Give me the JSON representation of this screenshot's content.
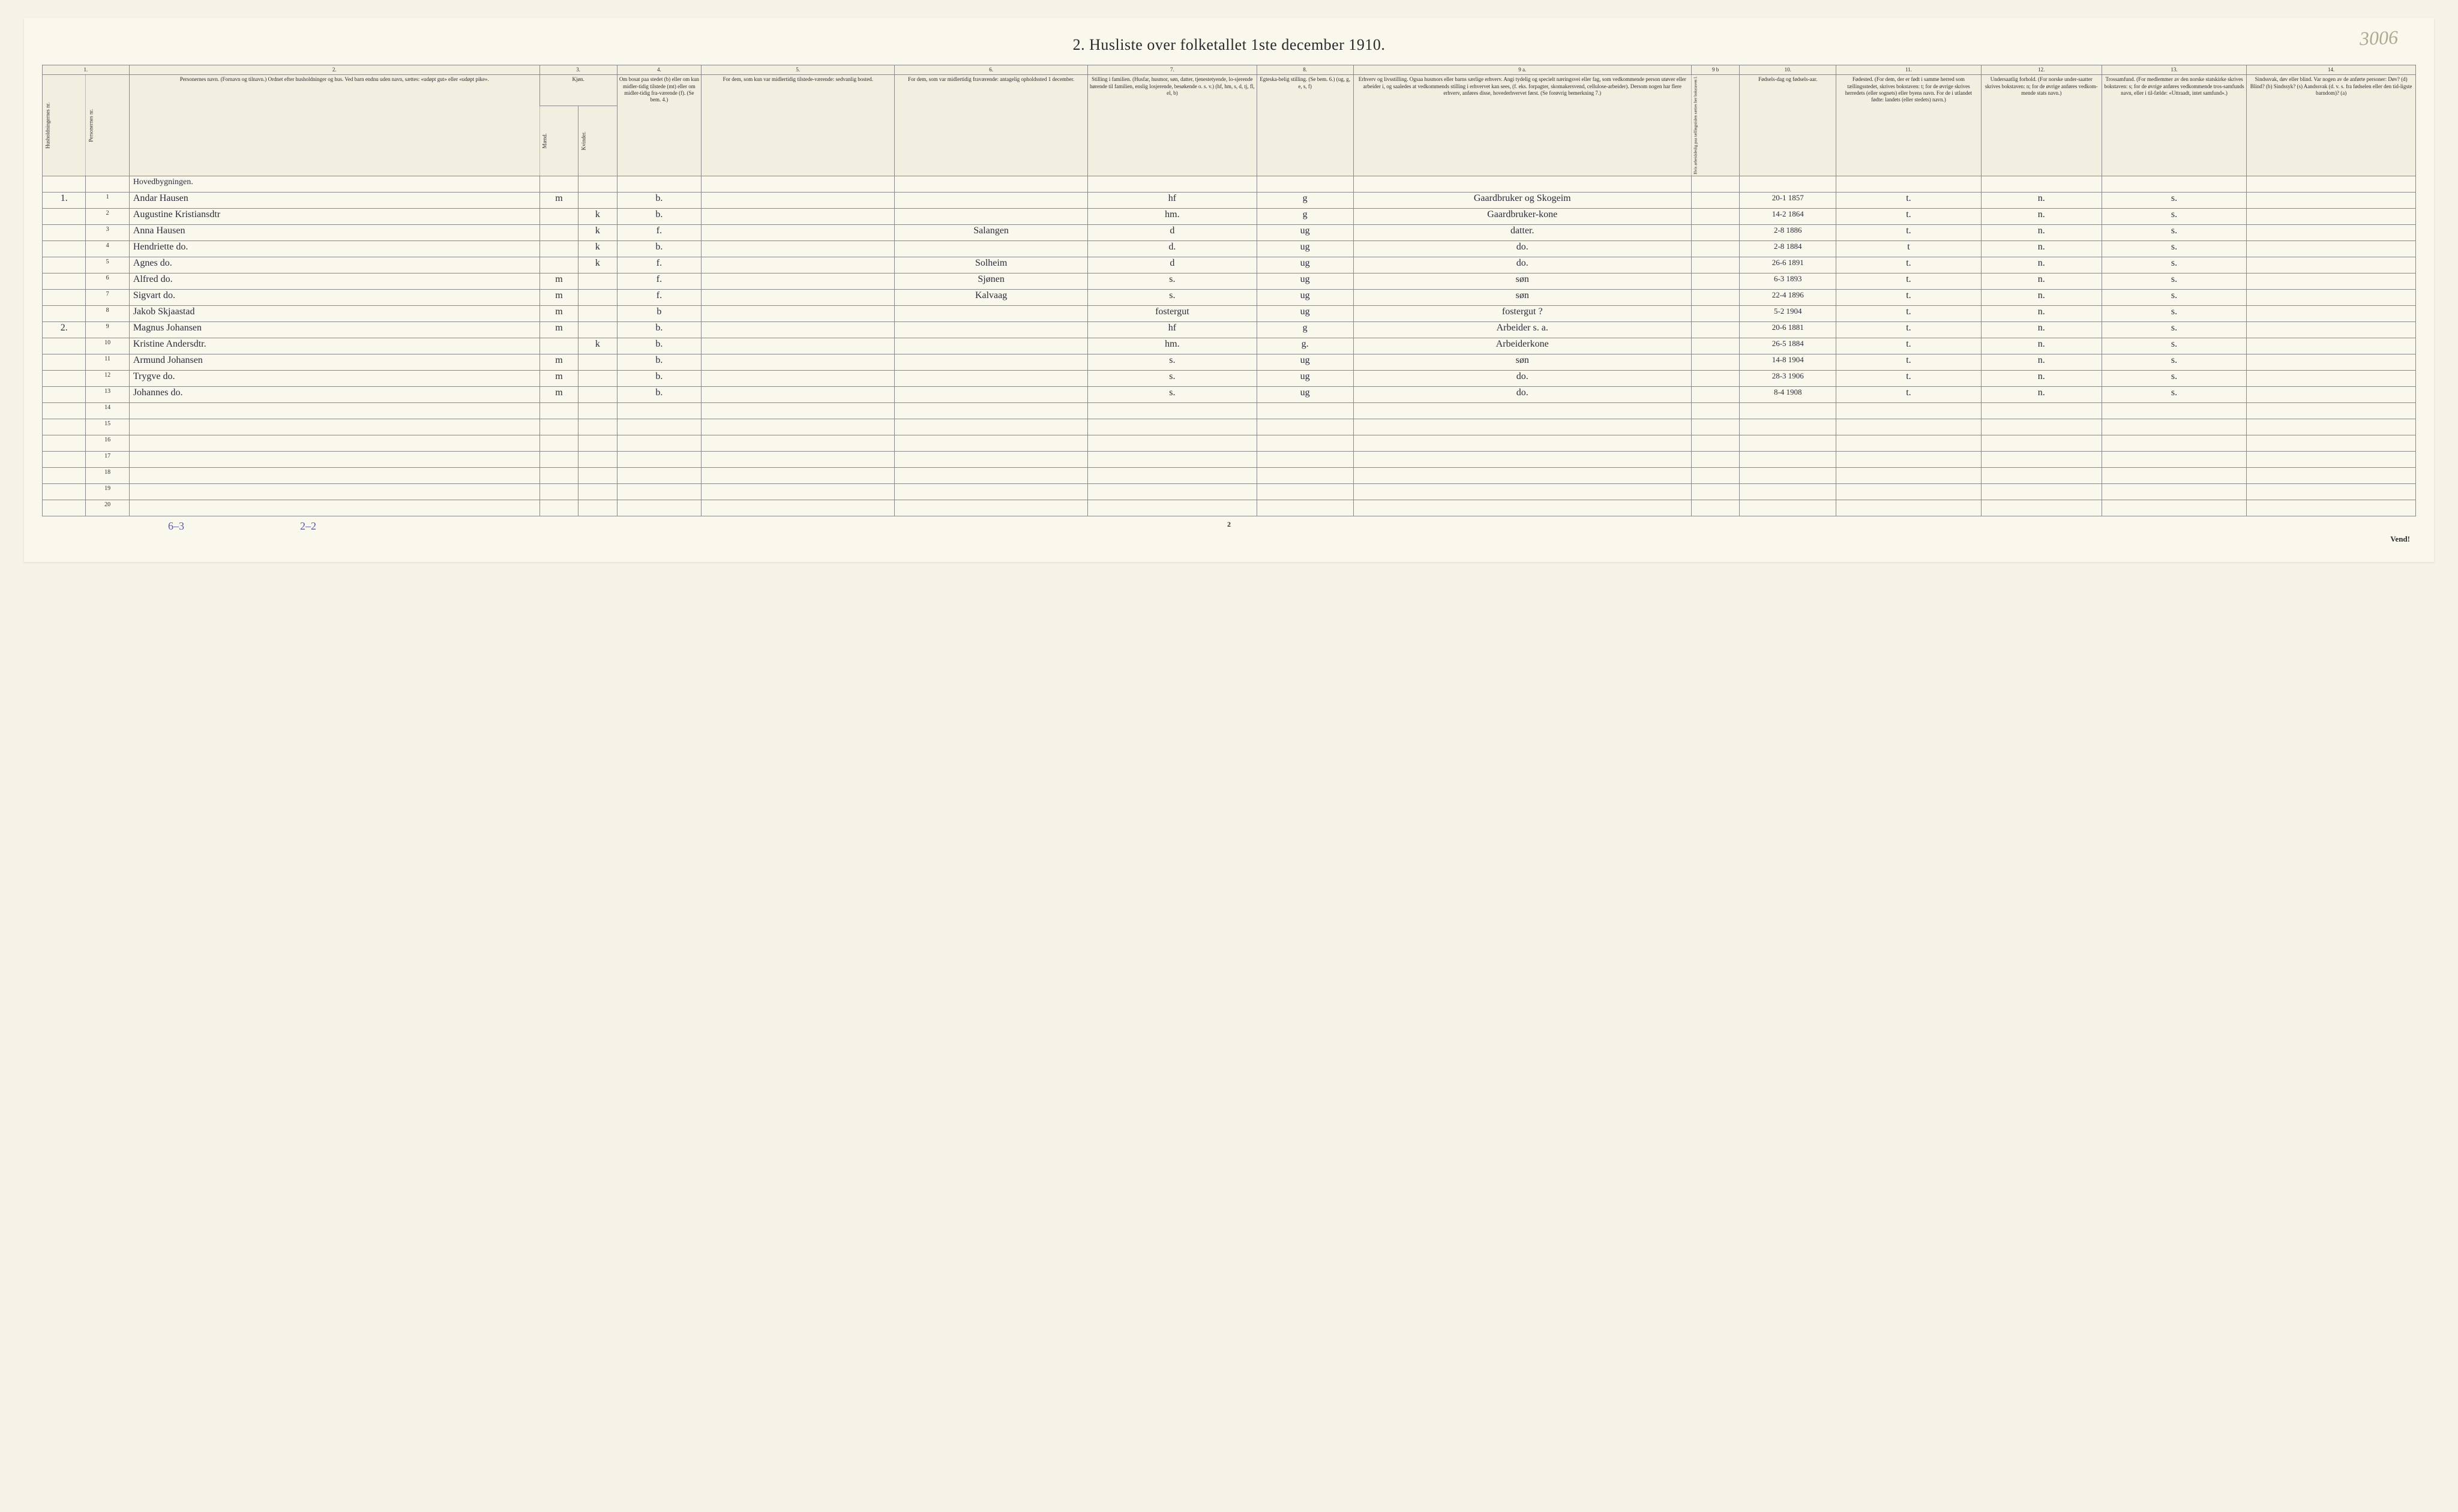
{
  "title": "2. Husliste over folketallet 1ste december 1910.",
  "watermark": "3006",
  "page_number": "2",
  "vend": "Vend!",
  "footer_note_left": "6–3",
  "footer_note_mid": "2–2",
  "column_numbers": [
    "1.",
    "",
    "2.",
    "3.",
    "",
    "4.",
    "5.",
    "6.",
    "7.",
    "8.",
    "9 a.",
    "9 b",
    "10.",
    "11.",
    "12.",
    "13.",
    "14."
  ],
  "headers": {
    "c1a": "Husholdningernes nr.",
    "c1b": "Personernes nr.",
    "c2": "Personernes navn.\n(Fornavn og tilnavn.)\nOrdnet efter husholdninger og hus.\nVed barn endnu uden navn, sættes: «udøpt gut» eller «udøpt pike».",
    "c3": "Kjøn.",
    "c3m": "Mænd.",
    "c3k": "Kvinder.",
    "c3mk": "m.  k.",
    "c4": "Om bosat paa stedet (b) eller om kun midler-tidig tilstede (mt) eller om midler-tidig fra-værende (f). (Se bem. 4.)",
    "c5": "For dem, som kun var midlertidig tilstede-værende:\nsedvanlig bosted.",
    "c6": "For dem, som var midlertidig fraværende:\nantagelig opholdssted 1 december.",
    "c7": "Stilling i familien.\n(Husfar, husmor, søn, datter, tjenestetyende, lo-sjerende hørende til familien, enslig losjerende, besøkende o. s. v.)\n(hf, hm, s, d, tj, fl, el, b)",
    "c8": "Egteska-belig stilling.\n(Se bem. 6.)\n(ug, g, e, s, f)",
    "c9a": "Erhverv og livsstilling.\nOgsaa husmors eller barns særlige erhverv. Angi tydelig og specielt næringsvei eller fag, som vedkommende person utøver eller arbeider i, og saaledes at vedkommends stilling i erhvervet kan sees, (f. eks. forpagter, skomakersvend, cellulose-arbeider). Dersom nogen har flere erhverv, anføres disse, hovederhvervet først. (Se forøvrig bemerkning 7.)",
    "c9b": "Hvis arbeidsledig paa tællingstiden sættes her bokstaven l.",
    "c10": "Fødsels-dag og fødsels-aar.",
    "c11": "Fødested.\n(For dem, der er født i samme herred som tællingsstedet, skrives bokstaven: t; for de øvrige skrives herredets (eller sognets) eller byens navn. For de i utlandet fødte: landets (eller stedets) navn.)",
    "c12": "Undersaatlig forhold.\n(For norske under-saatter skrives bokstaven: n; for de øvrige anføres vedkom-mende stats navn.)",
    "c13": "Trossamfund.\n(For medlemmer av den norske statskirke skrives bokstaven: s; for de øvrige anføres vedkommende tros-samfunds navn, eller i til-fælde: «Uttraadt, intet samfund».)",
    "c14": "Sindssvak, døv eller blind.\nVar nogen av de anførte personer:\nDøv? (d)\nBlind? (b)\nSindssyk? (s)\nAandssvak (d. v. s. fra fødselen eller den tid-ligste barndom)? (a)"
  },
  "section_label": "Hovedbygningen.",
  "rows": [
    {
      "hn": "1.",
      "pn": "1",
      "name": "Andar Hausen",
      "km": "m",
      "kk": "",
      "bos": "b.",
      "mid": "",
      "fra": "",
      "stil": "hf",
      "egt": "g",
      "erv": "Gaardbruker og Skogeim",
      "n9b": "",
      "fod": "20-1 1857",
      "fst": "t.",
      "und": "n.",
      "tro": "s.",
      "sin": ""
    },
    {
      "hn": "",
      "pn": "2",
      "name": "Augustine Kristiansdtr",
      "km": "",
      "kk": "k",
      "bos": "b.",
      "mid": "",
      "fra": "",
      "stil": "hm.",
      "egt": "g",
      "erv": "Gaardbruker-kone",
      "n9b": "",
      "fod": "14-2 1864",
      "fst": "t.",
      "und": "n.",
      "tro": "s.",
      "sin": ""
    },
    {
      "hn": "",
      "pn": "3",
      "name": "Anna Hausen",
      "km": "",
      "kk": "k",
      "bos": "f.",
      "mid": "",
      "fra": "Salangen",
      "stil": "d",
      "egt": "ug",
      "erv": "datter.",
      "n9b": "",
      "fod": "2-8 1886",
      "fst": "t.",
      "und": "n.",
      "tro": "s.",
      "sin": ""
    },
    {
      "hn": "",
      "pn": "4",
      "name": "Hendriette  do.",
      "km": "",
      "kk": "k",
      "bos": "b.",
      "mid": "",
      "fra": "",
      "stil": "d.",
      "egt": "ug",
      "erv": "do.",
      "n9b": "",
      "fod": "2-8 1884",
      "fst": "t",
      "und": "n.",
      "tro": "s.",
      "sin": ""
    },
    {
      "hn": "",
      "pn": "5",
      "name": "Agnes      do.",
      "km": "",
      "kk": "k",
      "bos": "f.",
      "mid": "",
      "fra": "Solheim",
      "stil": "d",
      "egt": "ug",
      "erv": "do.",
      "n9b": "",
      "fod": "26-6 1891",
      "fst": "t.",
      "und": "n.",
      "tro": "s.",
      "sin": ""
    },
    {
      "hn": "",
      "pn": "6",
      "name": "Alfred     do.",
      "km": "m",
      "kk": "",
      "bos": "f.",
      "mid": "",
      "fra": "Sjønen",
      "stil": "s.",
      "egt": "ug",
      "erv": "søn",
      "n9b": "",
      "fod": "6-3 1893",
      "fst": "t.",
      "und": "n.",
      "tro": "s.",
      "sin": ""
    },
    {
      "hn": "",
      "pn": "7",
      "name": "Sigvart    do.",
      "km": "m",
      "kk": "",
      "bos": "f.",
      "mid": "",
      "fra": "Kalvaag",
      "stil": "s.",
      "egt": "ug",
      "erv": "søn",
      "n9b": "",
      "fod": "22-4 1896",
      "fst": "t.",
      "und": "n.",
      "tro": "s.",
      "sin": ""
    },
    {
      "hn": "",
      "pn": "8",
      "name": "Jakob Skjaastad",
      "km": "m",
      "kk": "",
      "bos": "b",
      "mid": "",
      "fra": "",
      "stil": "fostergut",
      "egt": "ug",
      "erv": "fostergut ?",
      "n9b": "",
      "fod": "5-2 1904",
      "fst": "t.",
      "und": "n.",
      "tro": "s.",
      "sin": ""
    },
    {
      "hn": "2.",
      "pn": "9",
      "name": "Magnus Johansen",
      "km": "m",
      "kk": "",
      "bos": "b.",
      "mid": "",
      "fra": "",
      "stil": "hf",
      "egt": "g",
      "erv": "Arbeider s. a.",
      "n9b": "",
      "fod": "20-6 1881",
      "fst": "t.",
      "und": "n.",
      "tro": "s.",
      "sin": ""
    },
    {
      "hn": "",
      "pn": "10",
      "name": "Kristine Andersdtr.",
      "km": "",
      "kk": "k",
      "bos": "b.",
      "mid": "",
      "fra": "",
      "stil": "hm.",
      "egt": "g.",
      "erv": "Arbeiderkone",
      "n9b": "",
      "fod": "26-5 1884",
      "fst": "t.",
      "und": "n.",
      "tro": "s.",
      "sin": ""
    },
    {
      "hn": "",
      "pn": "11",
      "name": "Armund Johansen",
      "km": "m",
      "kk": "",
      "bos": "b.",
      "mid": "",
      "fra": "",
      "stil": "s.",
      "egt": "ug",
      "erv": "søn",
      "n9b": "",
      "fod": "14-8 1904",
      "fst": "t.",
      "und": "n.",
      "tro": "s.",
      "sin": ""
    },
    {
      "hn": "",
      "pn": "12",
      "name": "Trygve     do.",
      "km": "m",
      "kk": "",
      "bos": "b.",
      "mid": "",
      "fra": "",
      "stil": "s.",
      "egt": "ug",
      "erv": "do.",
      "n9b": "",
      "fod": "28-3 1906",
      "fst": "t.",
      "und": "n.",
      "tro": "s.",
      "sin": ""
    },
    {
      "hn": "",
      "pn": "13",
      "name": "Johannes   do.",
      "km": "m",
      "kk": "",
      "bos": "b.",
      "mid": "",
      "fra": "",
      "stil": "s.",
      "egt": "ug",
      "erv": "do.",
      "n9b": "",
      "fod": "8-4 1908",
      "fst": "t.",
      "und": "n.",
      "tro": "s.",
      "sin": ""
    }
  ],
  "empty_rows": [
    14,
    15,
    16,
    17,
    18,
    19,
    20
  ],
  "styling": {
    "page_bg": "#faf7ed",
    "body_bg": "#f5f2e8",
    "border_color": "#888",
    "header_bg": "#f2eee0",
    "title_fontsize": 26,
    "header_fontsize": 9,
    "body_fontsize": 10,
    "handwriting_fontsize": 16,
    "handwriting_color": "#2b2b3a",
    "note_color": "#5a5aa8",
    "watermark_color": "#b0a890"
  }
}
